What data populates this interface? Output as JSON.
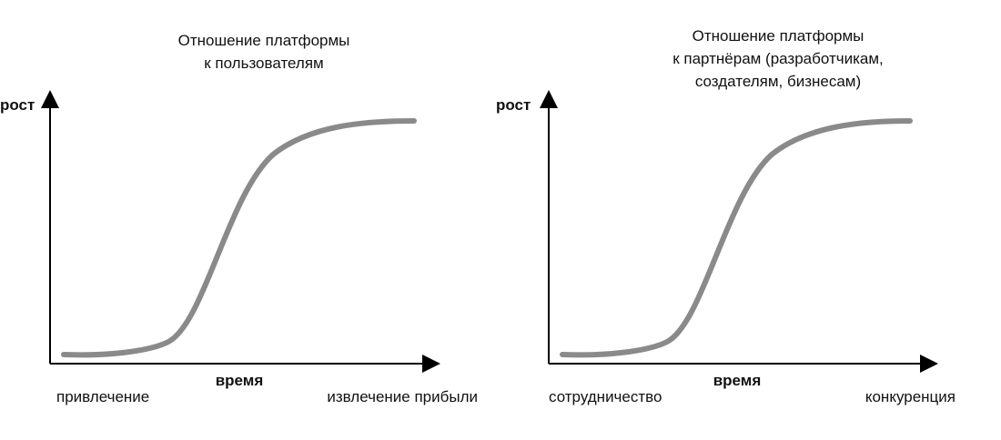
{
  "panels": [
    {
      "title": [
        "Отношение платформы",
        "к пользователям"
      ],
      "y_label": "рост",
      "x_label": "время",
      "start_label": "привлечение",
      "end_label": "извлечение прибыли"
    },
    {
      "title": [
        "Отношение платформы",
        "к партнёрам (разработчикам,",
        "создателям, бизнесам)"
      ],
      "y_label": "рост",
      "x_label": "время",
      "start_label": "сотрудничество",
      "end_label": "конкуренция"
    }
  ]
}
